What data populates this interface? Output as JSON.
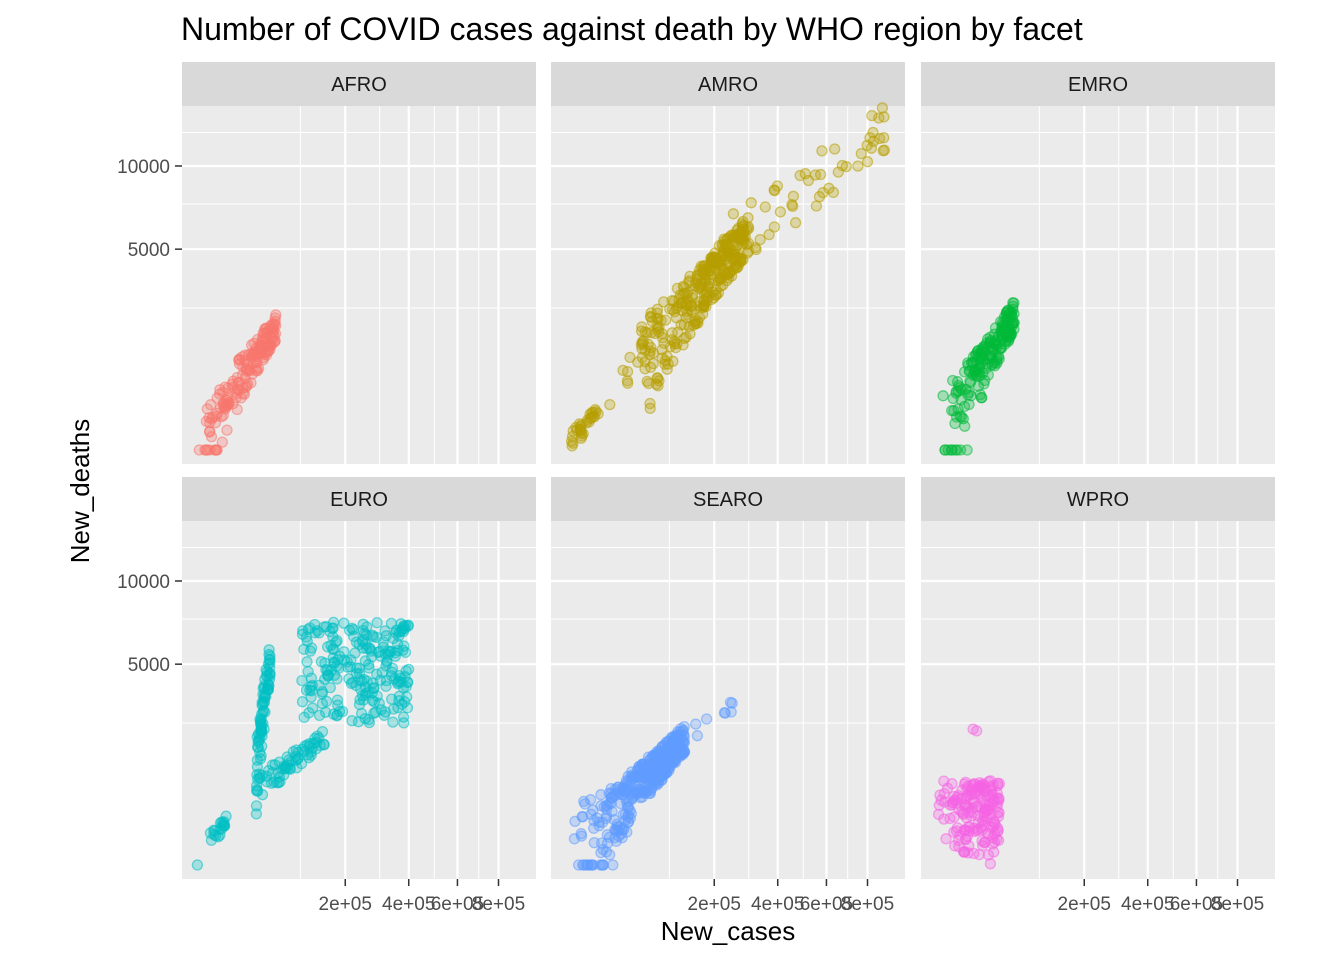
{
  "chart_data": {
    "type": "scatter",
    "title": "Number of COVID cases against death by WHO region by facet",
    "xlabel": "New_cases",
    "ylabel": "New_deaths",
    "x_scale": "sqrt",
    "y_scale": "sqrt",
    "xlim": [
      0,
      950000
    ],
    "ylim": [
      0,
      13500
    ],
    "x_breaks": [
      200000,
      400000,
      600000,
      800000
    ],
    "x_tick_labels": [
      "2e+05",
      "4e+05",
      "6e+05",
      "8e+05"
    ],
    "y_breaks": [
      5000,
      10000
    ],
    "y_tick_labels": [
      "5000",
      "10000"
    ],
    "grid": true,
    "legend": "none",
    "facets": [
      {
        "name": "AFRO",
        "color": "#F8766D",
        "seed": 11,
        "clusters": [
          {
            "n": 140,
            "x": [
              0,
              60000
            ],
            "y": [
              0,
              1900
            ],
            "slope": true
          },
          {
            "n": 25,
            "x": [
              0,
              12000
            ],
            "y": [
              0,
              300
            ],
            "slope": true
          }
        ]
      },
      {
        "name": "AMRO",
        "color": "#B79F00",
        "seed": 23,
        "clusters": [
          {
            "n": 30,
            "x": [
              0,
              12000
            ],
            "y": [
              0,
              200
            ],
            "slope": true
          },
          {
            "n": 300,
            "x": [
              55000,
              300000
            ],
            "y": [
              1000,
              5800
            ],
            "slope": true
          },
          {
            "n": 50,
            "x": [
              200000,
              900000
            ],
            "y": [
              5000,
              13000
            ],
            "slope": true
          },
          {
            "n": 12,
            "x": [
              20000,
              60000
            ],
            "y": [
              300,
              1400
            ],
            "slope": true
          }
        ]
      },
      {
        "name": "EMRO",
        "color": "#00BA38",
        "seed": 37,
        "clusters": [
          {
            "n": 180,
            "x": [
              0,
              60000
            ],
            "y": [
              0,
              2300
            ],
            "slope": true
          }
        ]
      },
      {
        "name": "EURO",
        "color": "#00BFC4",
        "seed": 41,
        "clusters": [
          {
            "n": 20,
            "x": [
              0,
              10000
            ],
            "y": [
              0,
              250
            ],
            "slope": true
          },
          {
            "n": 80,
            "x": [
              35000,
              52000
            ],
            "y": [
              800,
              5200
            ],
            "slope": true
          },
          {
            "n": 60,
            "x": [
              35000,
              150000
            ],
            "y": [
              750,
              2000
            ],
            "slope": true
          },
          {
            "n": 220,
            "x": [
              100000,
              400000
            ],
            "y": [
              2500,
              7300
            ],
            "slope": false
          }
        ]
      },
      {
        "name": "SEARO",
        "color": "#619CFF",
        "seed": 53,
        "clusters": [
          {
            "n": 380,
            "x": [
              0,
              130000
            ],
            "y": [
              0,
              2000
            ],
            "slope": true
          },
          {
            "n": 8,
            "x": [
              130000,
              270000
            ],
            "y": [
              2000,
              3400
            ],
            "slope": true
          }
        ]
      },
      {
        "name": "WPRO",
        "color": "#F564E3",
        "seed": 67,
        "clusters": [
          {
            "n": 170,
            "x": [
              0,
              40000
            ],
            "y": [
              0,
              880
            ],
            "slope": false
          },
          {
            "n": 2,
            "x": [
              15000,
              18000
            ],
            "y": [
              2000,
              2300
            ],
            "slope": false
          }
        ]
      }
    ]
  }
}
